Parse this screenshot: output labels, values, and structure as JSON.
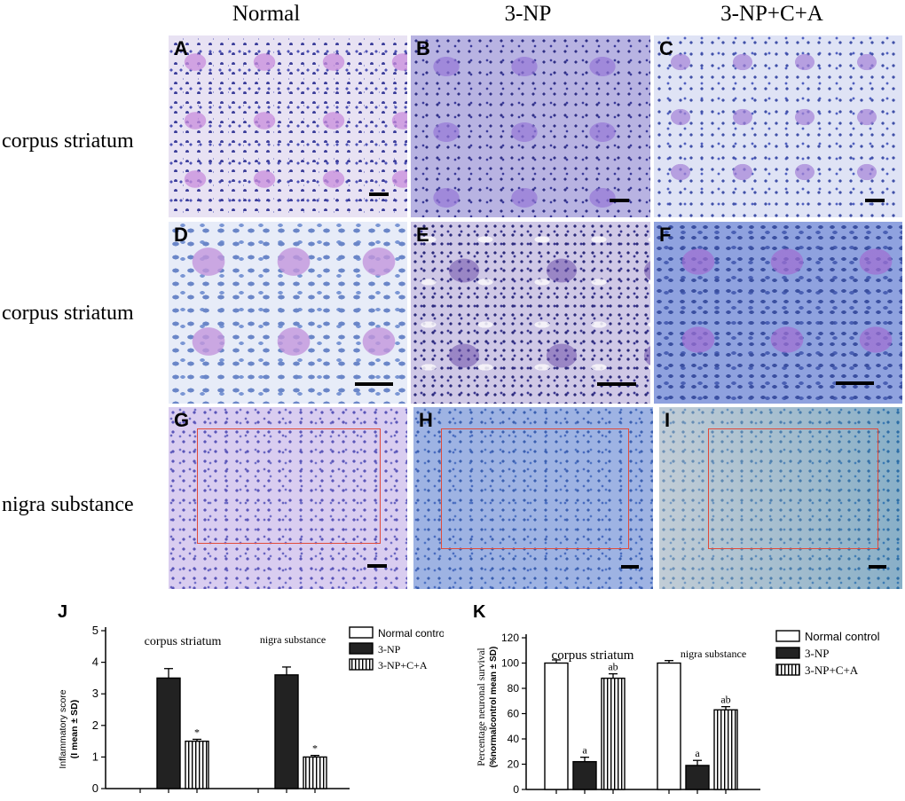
{
  "columns": [
    "Normal",
    "3-NP",
    "3-NP+C+A"
  ],
  "rows": [
    "corpus striatum",
    "corpus striatum",
    "nigra substance"
  ],
  "panels": [
    "A",
    "B",
    "C",
    "D",
    "E",
    "F",
    "G",
    "H",
    "I"
  ],
  "colors": {
    "roi": "#e14b3a",
    "bar_fill_dark": "#222222",
    "bar_stroke": "#000000"
  },
  "chart_data": [
    {
      "type": "bar",
      "panel_letter": "J",
      "ylabel_line1": "Inflammatory score",
      "ylabel_line2": "(I mean ± SD)",
      "ylim": [
        0,
        5
      ],
      "yticks": [
        "0",
        "1",
        "2",
        "3",
        "4",
        "5"
      ],
      "categories": [
        "corpus striatum",
        "nigra substance"
      ],
      "series": [
        {
          "name": "Normal control",
          "values": [
            0,
            0
          ],
          "errors": [
            0,
            0
          ],
          "pattern": "open"
        },
        {
          "name": "3-NP",
          "values": [
            3.5,
            3.6
          ],
          "errors": [
            0.3,
            0.25
          ],
          "pattern": "solid"
        },
        {
          "name": "3-NP+C+A",
          "values": [
            1.5,
            1.0
          ],
          "errors": [
            0.06,
            0.05
          ],
          "pattern": "striped"
        }
      ],
      "annotations": [
        {
          "series": 2,
          "category": 0,
          "text": "*"
        },
        {
          "series": 2,
          "category": 1,
          "text": "*"
        }
      ],
      "legend_position": "top-right"
    },
    {
      "type": "bar",
      "panel_letter": "K",
      "ylabel_line1": "Percentage neuronal survival",
      "ylabel_line2": "(%normalcontrol mean ± SD)",
      "ylim": [
        0,
        120
      ],
      "yticks": [
        "0",
        "20",
        "40",
        "60",
        "80",
        "100",
        "120"
      ],
      "categories": [
        "corpus striatum",
        "nigra substance"
      ],
      "series": [
        {
          "name": "Normal control",
          "values": [
            100,
            100
          ],
          "errors": [
            2.5,
            2
          ],
          "pattern": "open"
        },
        {
          "name": "3-NP",
          "values": [
            22,
            19
          ],
          "errors": [
            3.5,
            4
          ],
          "pattern": "solid"
        },
        {
          "name": "3-NP+C+A",
          "values": [
            88,
            63
          ],
          "errors": [
            3.5,
            2.5
          ],
          "pattern": "striped"
        }
      ],
      "annotations": [
        {
          "series": 1,
          "category": 0,
          "text": "a"
        },
        {
          "series": 2,
          "category": 0,
          "text": "ab"
        },
        {
          "series": 1,
          "category": 1,
          "text": "a"
        },
        {
          "series": 2,
          "category": 1,
          "text": "ab"
        }
      ],
      "legend_position": "top-right"
    }
  ]
}
